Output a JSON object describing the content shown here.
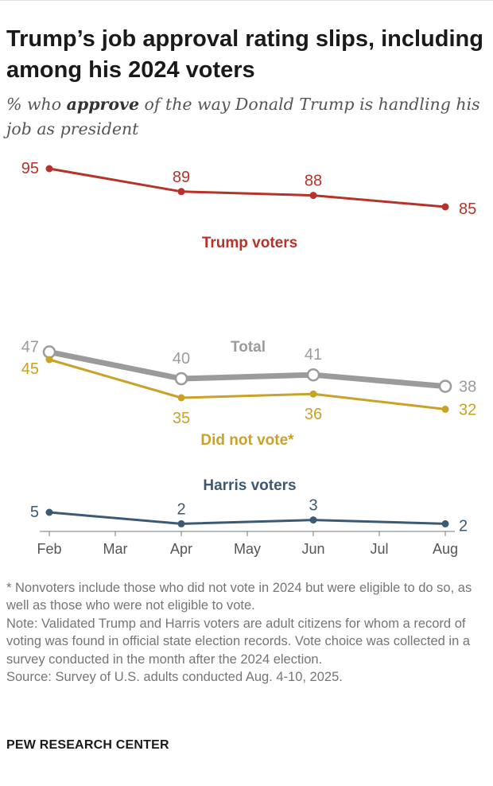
{
  "header": {
    "title": "Trump’s job approval rating slips, including among his 2024 voters",
    "subtitle_pre": "% who ",
    "subtitle_em": "approve",
    "subtitle_post": " of the way Donald Trump is handling his job as president"
  },
  "chart_data": {
    "type": "line",
    "title": "Trump’s job approval rating slips, including among his 2024 voters",
    "x_categories": [
      "Feb",
      "Mar",
      "Apr",
      "May",
      "Jun",
      "Jul",
      "Aug"
    ],
    "grid": false,
    "legend": "direct labels",
    "series": [
      {
        "name": "Trump voters",
        "color": "#b5332a",
        "points": [
          {
            "x": "Feb",
            "y": 95
          },
          {
            "x": "Apr",
            "y": 89
          },
          {
            "x": "Jun",
            "y": 88
          },
          {
            "x": "Aug",
            "y": 85
          }
        ]
      },
      {
        "name": "Total",
        "color": "#9b9b9b",
        "points": [
          {
            "x": "Feb",
            "y": 47
          },
          {
            "x": "Apr",
            "y": 40
          },
          {
            "x": "Jun",
            "y": 41
          },
          {
            "x": "Aug",
            "y": 38
          }
        ]
      },
      {
        "name": "Did not vote*",
        "color": "#c9a227",
        "points": [
          {
            "x": "Feb",
            "y": 45
          },
          {
            "x": "Apr",
            "y": 35
          },
          {
            "x": "Jun",
            "y": 36
          },
          {
            "x": "Aug",
            "y": 32
          }
        ]
      },
      {
        "name": "Harris voters",
        "color": "#3d5a74",
        "points": [
          {
            "x": "Feb",
            "y": 5
          },
          {
            "x": "Apr",
            "y": 2
          },
          {
            "x": "Jun",
            "y": 3
          },
          {
            "x": "Aug",
            "y": 2
          }
        ]
      }
    ]
  },
  "notes": {
    "footnote": "* Nonvoters include those who did not vote in 2024 but were eligible to do so, as well as those who were not eligible to vote.",
    "note": "Note: Validated Trump and Harris voters are adult citizens for whom a record of voting was found in official state election records. Vote choice was collected in a survey conducted in the month after the 2024 election.",
    "source": "Source: Survey of U.S. adults conducted Aug. 4-10, 2025."
  },
  "footer": {
    "brand": "PEW RESEARCH CENTER"
  }
}
